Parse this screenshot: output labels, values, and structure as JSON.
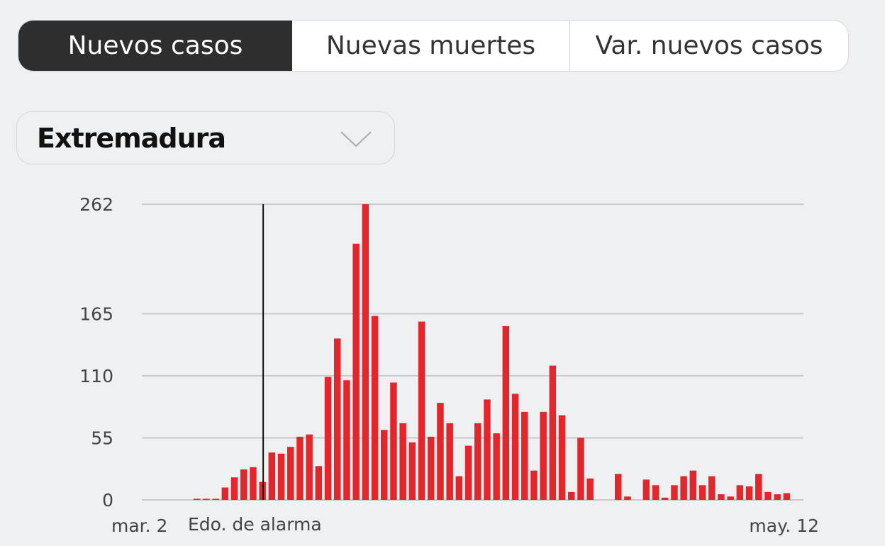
{
  "tabs": [
    {
      "label": "Nuevos casos",
      "active": true
    },
    {
      "label": "Nuevas muertes",
      "active": false
    },
    {
      "label": "Var. nuevos casos",
      "active": false
    }
  ],
  "region_select": {
    "value": "Extremadura"
  },
  "colors": {
    "bar": "#e3262b",
    "active_tab": "#2e2e2e",
    "marker": "#111111",
    "grid": "#c8c9cc"
  },
  "chart_data": {
    "type": "bar",
    "title": "",
    "xlabel": "",
    "ylabel": "",
    "ylim": [
      0,
      262
    ],
    "y_ticks": [
      0,
      55,
      110,
      165,
      262
    ],
    "y_tick_labels": [
      "0",
      "55",
      "110",
      "165",
      "262"
    ],
    "x_tick_labels": {
      "start": "mar. 2",
      "end": "may. 12"
    },
    "annotation": {
      "label": "Edo. de alarma",
      "bar_index": 7
    },
    "grid": true,
    "values": [
      1,
      1,
      1,
      11,
      20,
      27,
      29,
      16,
      42,
      41,
      47,
      56,
      58,
      30,
      109,
      143,
      106,
      227,
      262,
      163,
      62,
      104,
      68,
      51,
      158,
      56,
      86,
      68,
      21,
      48,
      68,
      89,
      59,
      154,
      94,
      78,
      26,
      78,
      119,
      75,
      7,
      55,
      19,
      0,
      0,
      23,
      3,
      0,
      18,
      13,
      2,
      13,
      21,
      26,
      13,
      21,
      5,
      3,
      13,
      12,
      23,
      7,
      5,
      6,
      0
    ]
  }
}
